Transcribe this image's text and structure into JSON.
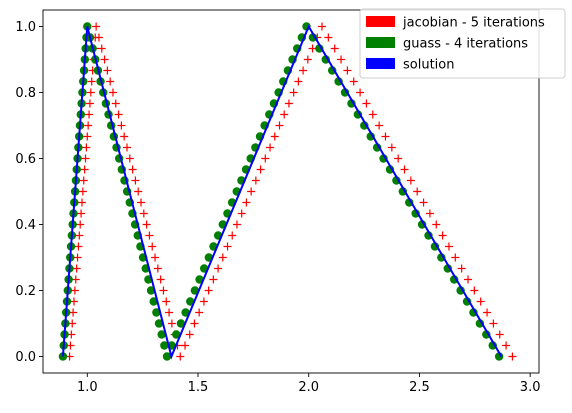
{
  "chart_data": {
    "type": "scatter",
    "title": "",
    "xlabel": "",
    "ylabel": "",
    "xlim": [
      0.8,
      3.04
    ],
    "ylim": [
      -0.05,
      1.05
    ],
    "xticks": [
      1.0,
      1.5,
      2.0,
      2.5,
      3.0
    ],
    "xtick_labels": [
      "1.0",
      "1.5",
      "2.0",
      "2.5",
      "3.0"
    ],
    "yticks": [
      0.0,
      0.2,
      0.4,
      0.6,
      0.8,
      1.0
    ],
    "ytick_labels": [
      "0.0",
      "0.2",
      "0.4",
      "0.6",
      "0.8",
      "1.0"
    ],
    "grid": false,
    "legend_position": "top-right",
    "legend": [
      {
        "label": "jacobian - 5 iterations",
        "color": "#ff0000"
      },
      {
        "label": "guass - 4 iterations",
        "color": "#008000"
      },
      {
        "label": "solution",
        "color": "#0000ff"
      }
    ],
    "series": [
      {
        "name": "jacobian - 5 iterations",
        "kind": "scatter",
        "marker": "plus",
        "color": "#ff0000",
        "segments": [
          {
            "from": [
              0.92,
              0.0
            ],
            "to": [
              1.04,
              1.0
            ]
          },
          {
            "from": [
              1.04,
              1.0
            ],
            "to": [
              1.42,
              0.0
            ]
          },
          {
            "from": [
              1.42,
              0.0
            ],
            "to": [
              2.06,
              1.0
            ]
          },
          {
            "from": [
              2.06,
              1.0
            ],
            "to": [
              2.92,
              0.0
            ]
          }
        ]
      },
      {
        "name": "guass - 4 iterations",
        "kind": "scatter",
        "marker": "circle",
        "color": "#008000",
        "segments": [
          {
            "from": [
              0.89,
              0.0
            ],
            "to": [
              1.0,
              1.0
            ]
          },
          {
            "from": [
              1.0,
              1.0
            ],
            "to": [
              1.36,
              0.0
            ]
          },
          {
            "from": [
              1.36,
              0.0
            ],
            "to": [
              1.99,
              1.0
            ]
          },
          {
            "from": [
              1.99,
              1.0
            ],
            "to": [
              2.86,
              0.0
            ]
          }
        ]
      },
      {
        "name": "solution",
        "kind": "line",
        "color": "#0000ff",
        "x": [
          0.89,
          1.0,
          1.38,
          2.0,
          2.87
        ],
        "y": [
          0.0,
          1.0,
          0.0,
          1.0,
          0.0
        ]
      }
    ]
  }
}
